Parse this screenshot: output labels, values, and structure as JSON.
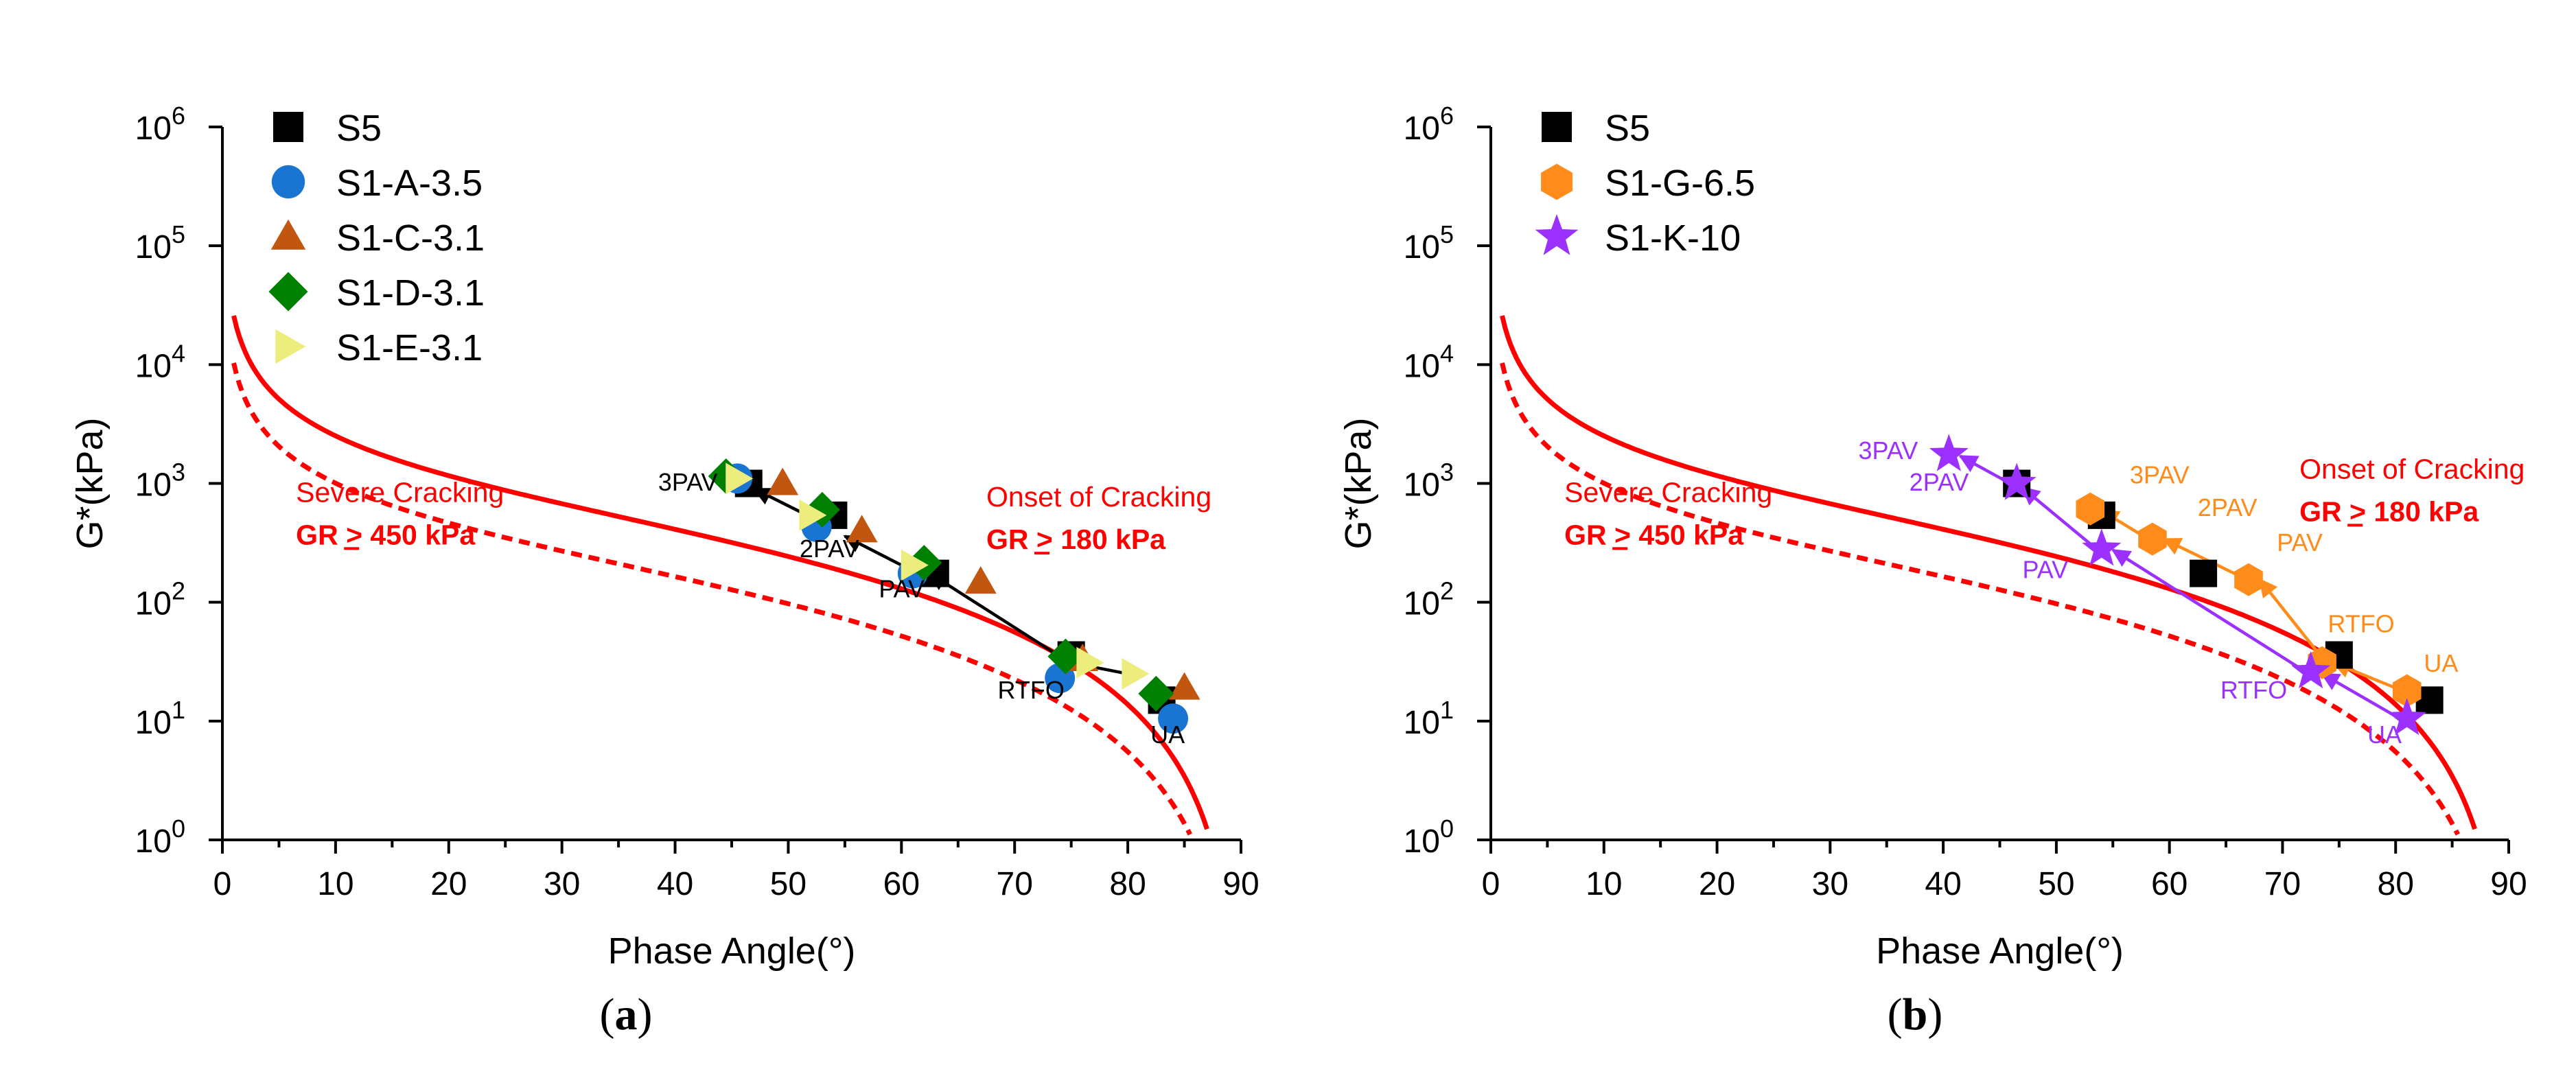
{
  "chart_data": [
    {
      "type": "scatter",
      "panel_label": "(a)",
      "xlabel": "Phase Angle(°)",
      "ylabel": "G*(kPa)",
      "xlim": [
        0,
        90
      ],
      "ylim_log10": [
        0,
        6
      ],
      "x_ticks": [
        "0",
        "10",
        "20",
        "30",
        "40",
        "50",
        "60",
        "70",
        "80",
        "90"
      ],
      "y_ticks": [
        "0",
        "1",
        "2",
        "3",
        "4",
        "5",
        "6"
      ],
      "y_tick_base": "10",
      "legend_position": "top-left",
      "series": [
        {
          "name": "S5",
          "marker": "square",
          "color": "#000000",
          "points": [
            [
              83,
              15
            ],
            [
              75,
              36
            ],
            [
              63,
              175
            ],
            [
              54,
              540
            ],
            [
              46.5,
              1000
            ]
          ]
        },
        {
          "name": "S1-A-3.5",
          "marker": "circle",
          "color": "#1a75d2",
          "points": [
            [
              84,
              10.5
            ],
            [
              74,
              23
            ],
            [
              61,
              175
            ],
            [
              52.5,
              430
            ],
            [
              45.5,
              1100
            ]
          ]
        },
        {
          "name": "S1-C-3.1",
          "marker": "triangle-up",
          "color": "#c0560f",
          "points": [
            [
              85,
              19
            ],
            [
              76,
              33
            ],
            [
              67,
              148
            ],
            [
              56.5,
              400
            ],
            [
              49.5,
              1000
            ]
          ]
        },
        {
          "name": "S1-D-3.1",
          "marker": "diamond",
          "color": "#008000",
          "points": [
            [
              82.5,
              17
            ],
            [
              74.5,
              35
            ],
            [
              62,
              215
            ],
            [
              53,
              600
            ],
            [
              44.5,
              1150
            ]
          ]
        },
        {
          "name": "S1-E-3.1",
          "marker": "triangle-right",
          "color": "#eded7e",
          "points": [
            [
              80.5,
              25
            ],
            [
              76.5,
              31
            ],
            [
              61,
              205
            ],
            [
              52,
              540
            ],
            [
              45.5,
              1100
            ]
          ]
        }
      ],
      "arrows": [
        [
          [
            80,
            25
          ],
          [
            73.5,
            33
          ]
        ],
        [
          [
            74,
            35
          ],
          [
            62.5,
            175
          ]
        ],
        [
          [
            60,
            205
          ],
          [
            55,
            360
          ]
        ],
        [
          [
            52,
            520
          ],
          [
            47,
            900
          ]
        ]
      ],
      "point_annotations": [
        {
          "text": "UA",
          "x": 82,
          "y": 6.5,
          "color": "#000000"
        },
        {
          "text": "RTFO",
          "x": 68.5,
          "y": 15.5,
          "color": "#000000"
        },
        {
          "text": "PAV",
          "x": 58,
          "y": 110,
          "color": "#000000"
        },
        {
          "text": "2PAV",
          "x": 51,
          "y": 240,
          "color": "#000000"
        },
        {
          "text": "3PAV",
          "x": 38.5,
          "y": 870,
          "color": "#000000"
        }
      ],
      "curves": [
        {
          "name": "GR 450 kPa limit",
          "style": "solid",
          "color": "#ff0000",
          "gr_kpa": 450
        },
        {
          "name": "GR 180 kPa limit",
          "style": "dashed",
          "color": "#ff0000",
          "gr_kpa": 180
        }
      ],
      "region_labels": [
        {
          "line1": "Severe Cracking",
          "line2": "GR > 450 kPa",
          "x": 6.5,
          "y": 700
        },
        {
          "line1": "Onset of Cracking",
          "line2": "GR > 180 kPa",
          "x": 67.5,
          "y": 640
        }
      ]
    },
    {
      "type": "scatter",
      "panel_label": "(b)",
      "xlabel": "Phase Angle(°)",
      "ylabel": "G*(kPa)",
      "xlim": [
        0,
        90
      ],
      "ylim_log10": [
        0,
        6
      ],
      "x_ticks": [
        "0",
        "10",
        "20",
        "30",
        "40",
        "50",
        "60",
        "70",
        "80",
        "90"
      ],
      "y_ticks": [
        "0",
        "1",
        "2",
        "3",
        "4",
        "5",
        "6"
      ],
      "y_tick_base": "10",
      "legend_position": "top-left",
      "series": [
        {
          "name": "S5",
          "marker": "square",
          "color": "#000000",
          "points": [
            [
              83,
              15
            ],
            [
              75,
              36
            ],
            [
              63,
              175
            ],
            [
              54,
              540
            ],
            [
              46.5,
              1000
            ]
          ]
        },
        {
          "name": "S1-G-6.5",
          "marker": "hexagon",
          "color": "#ff8c1a",
          "points": [
            [
              81,
              18
            ],
            [
              73.5,
              31
            ],
            [
              67,
              155
            ],
            [
              58.5,
              340
            ],
            [
              53,
              610
            ]
          ]
        },
        {
          "name": "S1-K-10",
          "marker": "star",
          "color": "#9b30ff",
          "points": [
            [
              81,
              10.5
            ],
            [
              72.5,
              26
            ],
            [
              54,
              280
            ],
            [
              46.5,
              1000
            ],
            [
              40.5,
              1750
            ]
          ]
        }
      ],
      "arrows": [
        {
          "color": "#ff8c1a",
          "from": [
            80,
            19
          ],
          "to": [
            74.5,
            31
          ]
        },
        {
          "color": "#ff8c1a",
          "from": [
            73.5,
            34
          ],
          "to": [
            68,
            155
          ]
        },
        {
          "color": "#ff8c1a",
          "from": [
            66,
            170
          ],
          "to": [
            59.5,
            340
          ]
        },
        {
          "color": "#ff8c1a",
          "from": [
            57.5,
            370
          ],
          "to": [
            54,
            590
          ]
        },
        {
          "color": "#9b30ff",
          "from": [
            80,
            11
          ],
          "to": [
            73.5,
            25
          ]
        },
        {
          "color": "#9b30ff",
          "from": [
            71.5,
            28
          ],
          "to": [
            55,
            275
          ]
        },
        {
          "color": "#9b30ff",
          "from": [
            53,
            310
          ],
          "to": [
            47,
            920
          ]
        },
        {
          "color": "#9b30ff",
          "from": [
            45.5,
            1050
          ],
          "to": [
            41.5,
            1700
          ]
        }
      ],
      "point_annotations": [
        {
          "text": "UA",
          "x": 82.5,
          "y": 26,
          "color": "#ff8c1a"
        },
        {
          "text": "RTFO",
          "x": 74,
          "y": 56,
          "color": "#ff8c1a"
        },
        {
          "text": "PAV",
          "x": 69.5,
          "y": 270,
          "color": "#ff8c1a"
        },
        {
          "text": "2PAV",
          "x": 62.5,
          "y": 530,
          "color": "#ff8c1a"
        },
        {
          "text": "3PAV",
          "x": 56.5,
          "y": 1000,
          "color": "#ff8c1a"
        },
        {
          "text": "UA",
          "x": 77.5,
          "y": 6.5,
          "color": "#9b30ff"
        },
        {
          "text": "RTFO",
          "x": 64.5,
          "y": 15.5,
          "color": "#9b30ff"
        },
        {
          "text": "PAV",
          "x": 47,
          "y": 160,
          "color": "#9b30ff"
        },
        {
          "text": "2PAV",
          "x": 37,
          "y": 870,
          "color": "#9b30ff"
        },
        {
          "text": "3PAV",
          "x": 32.5,
          "y": 1600,
          "color": "#9b30ff"
        }
      ],
      "curves": [
        {
          "name": "GR 450 kPa limit",
          "style": "solid",
          "color": "#ff0000",
          "gr_kpa": 450
        },
        {
          "name": "GR 180 kPa limit",
          "style": "dashed",
          "color": "#ff0000",
          "gr_kpa": 180
        }
      ],
      "region_labels": [
        {
          "line1": "Severe Cracking",
          "line2": "GR > 450 kPa",
          "x": 6.5,
          "y": 700
        },
        {
          "line1": "Onset of Cracking",
          "line2": "GR > 180 kPa",
          "x": 71.5,
          "y": 1100
        }
      ]
    }
  ]
}
